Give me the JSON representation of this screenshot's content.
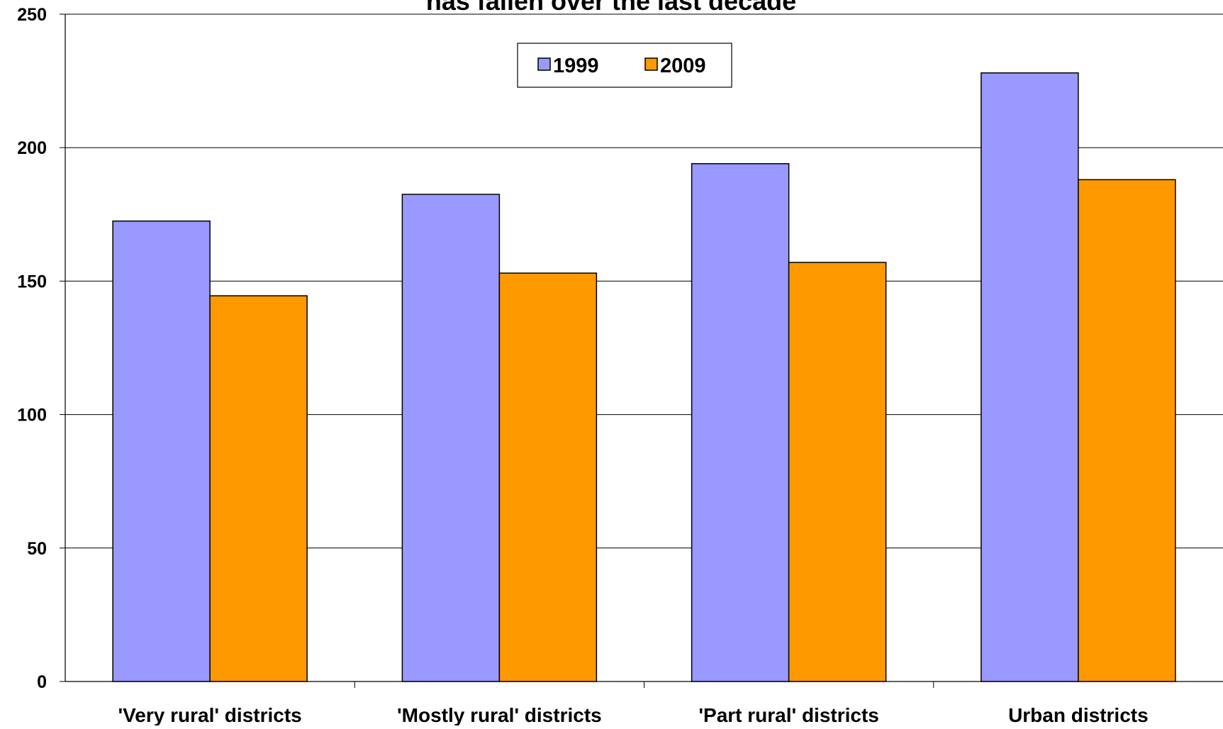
{
  "chart_data": {
    "type": "bar",
    "title": "has fallen over the last decade",
    "xlabel": "",
    "ylabel": "",
    "categories": [
      "'Very rural' districts",
      "'Mostly rural' districts",
      "'Part rural' districts",
      "Urban districts"
    ],
    "series": [
      {
        "name": "1999",
        "color": "#9999ff",
        "values": [
          172.5,
          182.5,
          194,
          228
        ]
      },
      {
        "name": "2009",
        "color": "#ff9900",
        "values": [
          144.5,
          153,
          157,
          188
        ]
      }
    ],
    "ylim": [
      0,
      250
    ],
    "yticks": [
      "0",
      "50",
      "100",
      "150",
      "200",
      "250"
    ],
    "grid": true,
    "legend_position": "top-center"
  }
}
